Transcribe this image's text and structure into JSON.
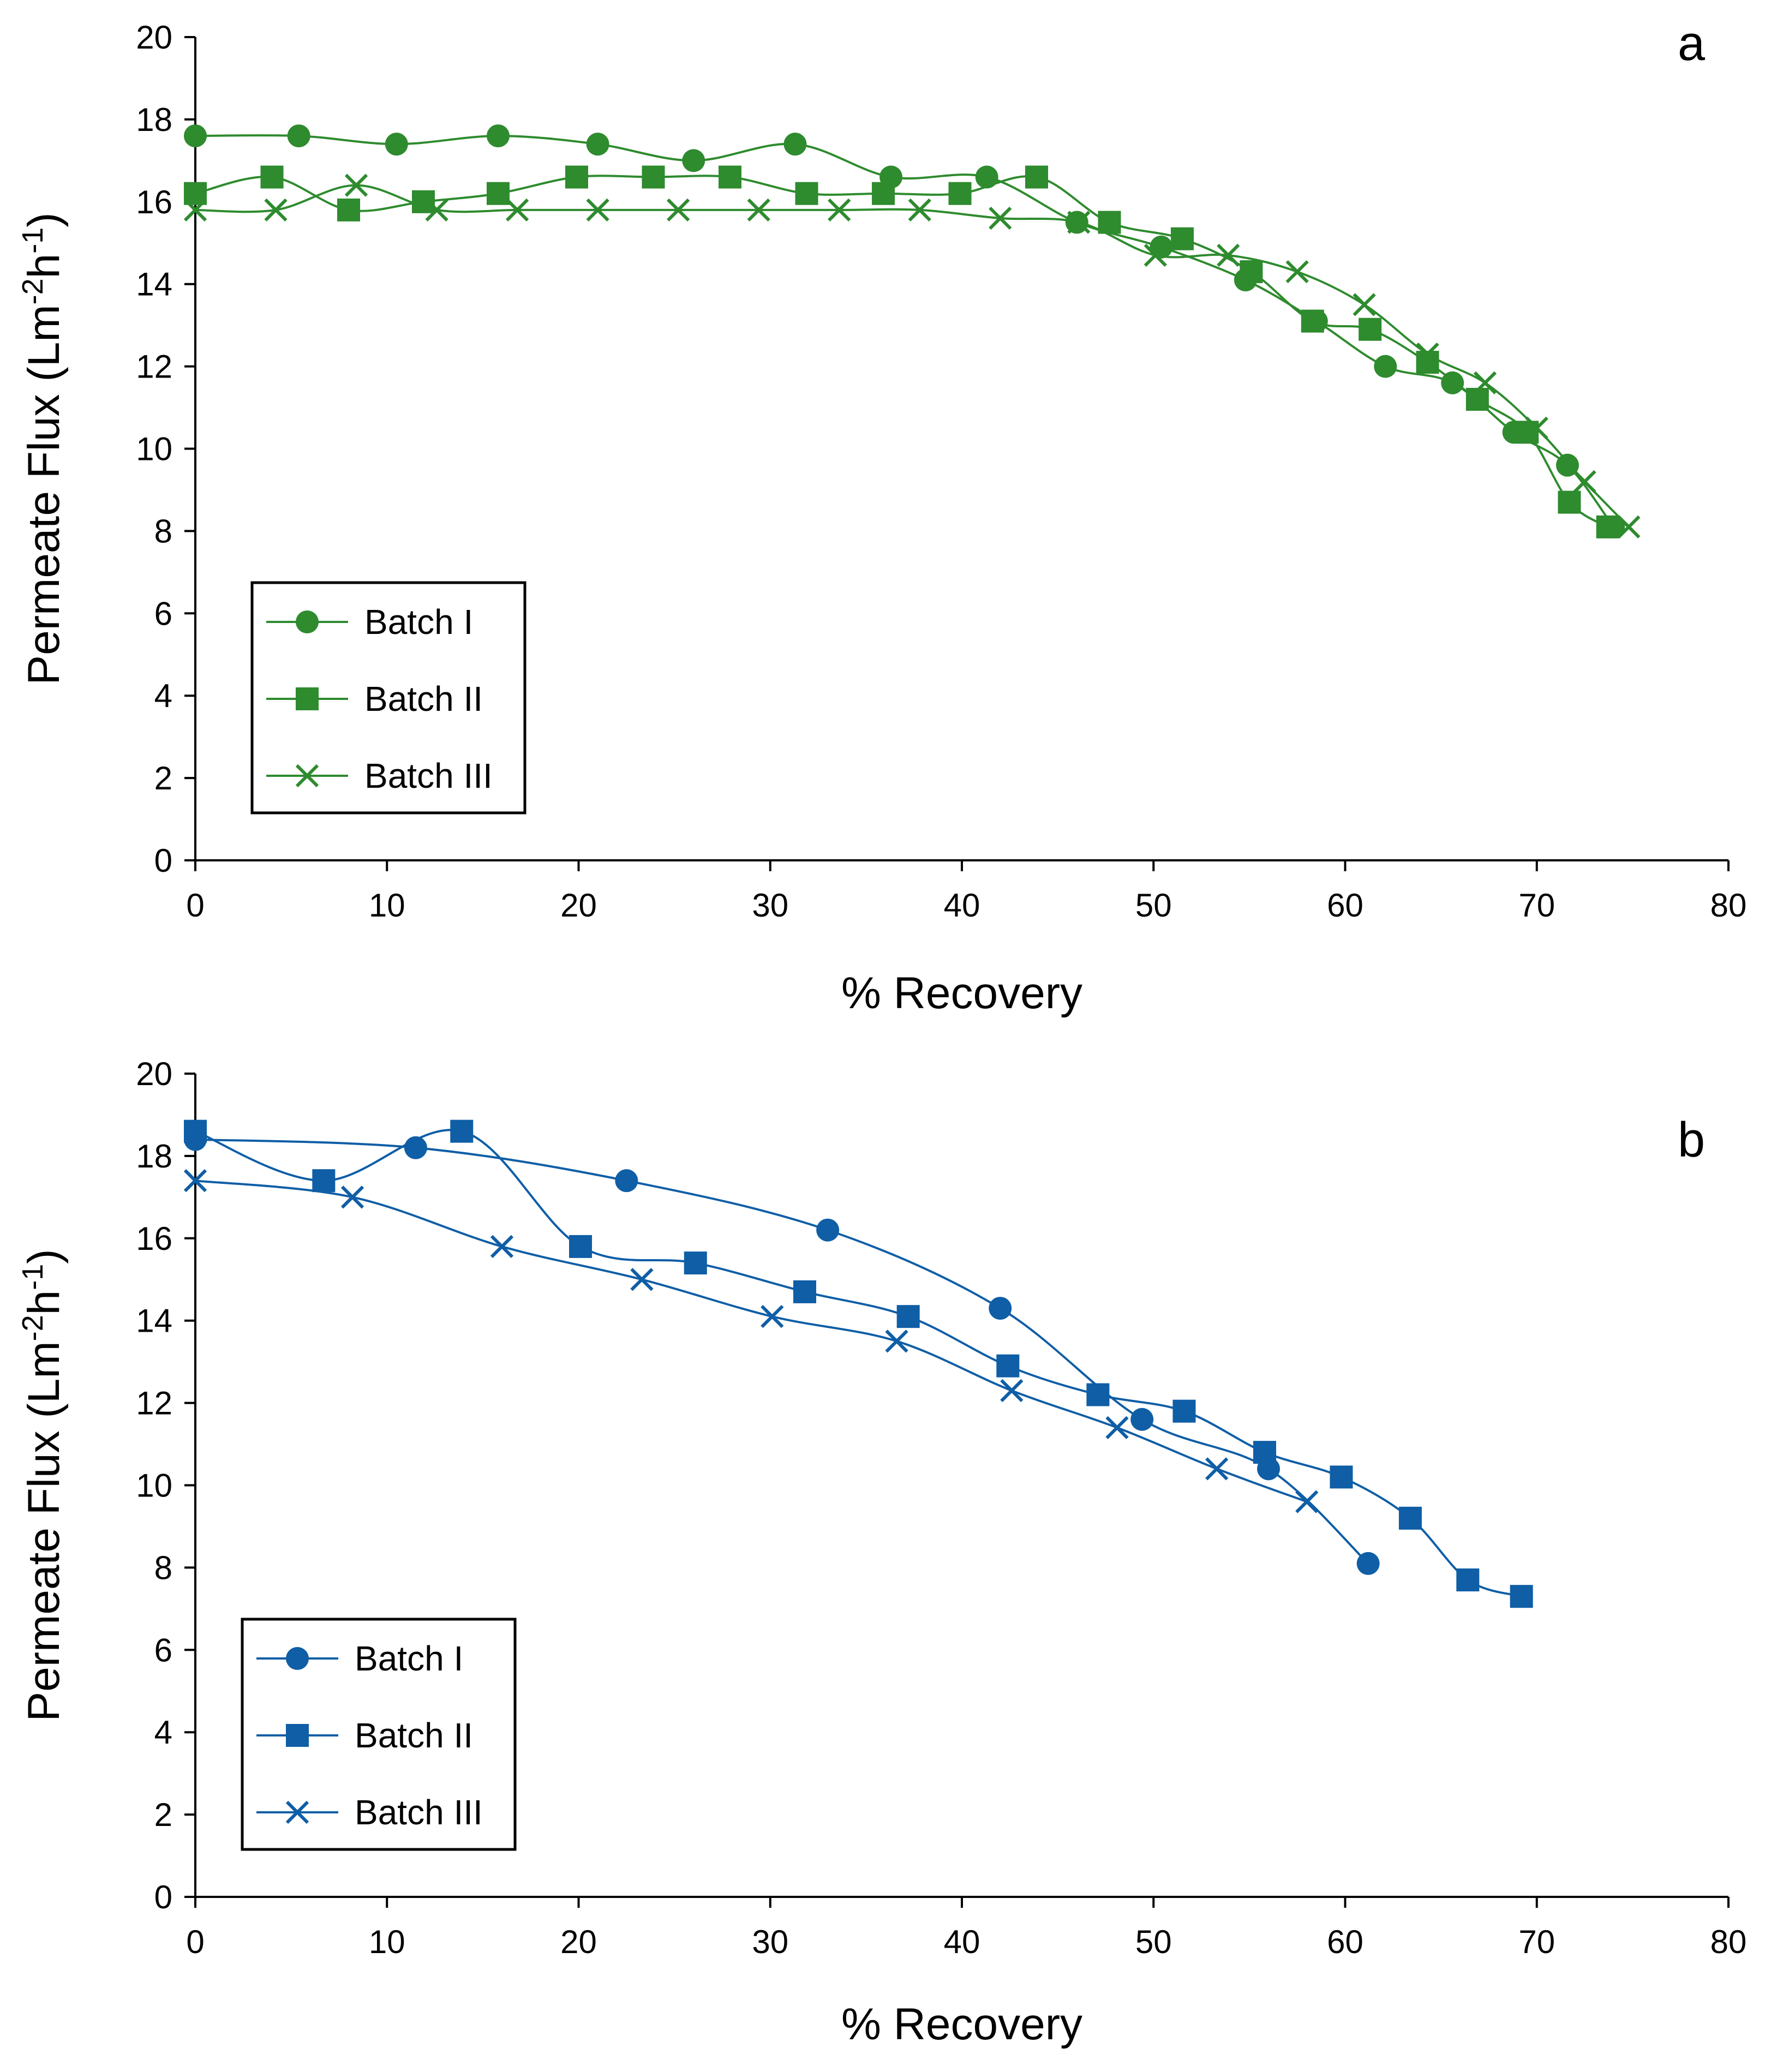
{
  "chart_data": [
    {
      "type": "line",
      "panel_label": "a",
      "color": "#2e8b2e",
      "xlabel": "% Recovery",
      "ylabel": "Permeate Flux (Lm-2h-1)",
      "ylabel_parts": {
        "base": "Permeate Flux (Lm",
        "exp1": "-2",
        "mid": "h",
        "exp2": "-1",
        "end": ")"
      },
      "xlim": [
        0,
        80
      ],
      "ylim": [
        0,
        20
      ],
      "x_ticks": [
        0,
        10,
        20,
        30,
        40,
        50,
        60,
        70,
        80
      ],
      "y_ticks": [
        0,
        2,
        4,
        6,
        8,
        10,
        12,
        14,
        16,
        18,
        20
      ],
      "legend_position": "lower-left",
      "series": [
        {
          "name": "Batch I",
          "marker": "circle",
          "x": [
            0,
            5.4,
            10.5,
            15.8,
            21,
            26,
            31.3,
            36.3,
            41.3,
            46,
            50.4,
            54.8,
            58.5,
            62.1,
            65.6,
            68.8,
            71.6,
            74
          ],
          "y": [
            17.6,
            17.6,
            17.4,
            17.6,
            17.4,
            17.0,
            17.4,
            16.6,
            16.6,
            15.5,
            14.9,
            14.1,
            13.1,
            12.0,
            11.6,
            10.4,
            9.6,
            8.1
          ]
        },
        {
          "name": "Batch II",
          "marker": "square",
          "x": [
            0,
            4,
            8,
            11.9,
            15.8,
            19.9,
            23.9,
            27.9,
            31.9,
            35.9,
            39.9,
            43.9,
            47.7,
            51.5,
            55.1,
            58.3,
            61.3,
            64.3,
            66.9,
            69.5,
            71.7,
            73.7
          ],
          "y": [
            16.2,
            16.6,
            15.8,
            16.0,
            16.2,
            16.6,
            16.6,
            16.6,
            16.2,
            16.2,
            16.2,
            16.6,
            15.5,
            15.1,
            14.3,
            13.1,
            12.9,
            12.1,
            11.2,
            10.4,
            8.7,
            8.1
          ]
        },
        {
          "name": "Batch III",
          "marker": "x",
          "x": [
            0,
            4.2,
            8.4,
            12.6,
            16.8,
            21,
            25.2,
            29.4,
            33.6,
            37.8,
            42,
            46.1,
            50.1,
            53.9,
            57.5,
            61,
            64.3,
            67.3,
            70,
            72.5,
            74.8
          ],
          "y": [
            15.8,
            15.8,
            16.4,
            15.8,
            15.8,
            15.8,
            15.8,
            15.8,
            15.8,
            15.8,
            15.6,
            15.5,
            14.7,
            14.7,
            14.3,
            13.5,
            12.3,
            11.6,
            10.5,
            9.2,
            8.1
          ]
        }
      ]
    },
    {
      "type": "line",
      "panel_label": "b",
      "color": "#0f5ea6",
      "xlabel": "% Recovery",
      "ylabel": "Permeate Flux (Lm-2h-1)",
      "ylabel_parts": {
        "base": "Permeate Flux (Lm",
        "exp1": "-2",
        "mid": "h",
        "exp2": "-1",
        "end": ")"
      },
      "xlim": [
        0,
        80
      ],
      "ylim": [
        0,
        20
      ],
      "x_ticks": [
        0,
        10,
        20,
        30,
        40,
        50,
        60,
        70,
        80
      ],
      "y_ticks": [
        0,
        2,
        4,
        6,
        8,
        10,
        12,
        14,
        16,
        18,
        20
      ],
      "legend_position": "lower-left",
      "series": [
        {
          "name": "Batch I",
          "marker": "circle",
          "x": [
            0,
            11.5,
            22.5,
            33,
            42,
            49.4,
            56,
            61.2
          ],
          "y": [
            18.4,
            18.2,
            17.4,
            16.2,
            14.3,
            11.6,
            10.4,
            8.1
          ]
        },
        {
          "name": "Batch II",
          "marker": "square",
          "x": [
            0,
            6.7,
            13.9,
            20.1,
            26.1,
            31.8,
            37.2,
            42.4,
            47.1,
            51.6,
            55.8,
            59.8,
            63.4,
            66.4,
            69.2
          ],
          "y": [
            18.6,
            17.4,
            18.6,
            15.8,
            15.4,
            14.7,
            14.1,
            12.9,
            12.2,
            11.8,
            10.8,
            10.2,
            9.2,
            7.7,
            7.3
          ]
        },
        {
          "name": "Batch III",
          "marker": "x",
          "x": [
            0,
            8.2,
            16,
            23.3,
            30.1,
            36.6,
            42.6,
            48.1,
            53.3,
            58
          ],
          "y": [
            17.4,
            17.0,
            15.8,
            15.0,
            14.1,
            13.5,
            12.3,
            11.4,
            10.4,
            9.6
          ]
        }
      ]
    }
  ]
}
